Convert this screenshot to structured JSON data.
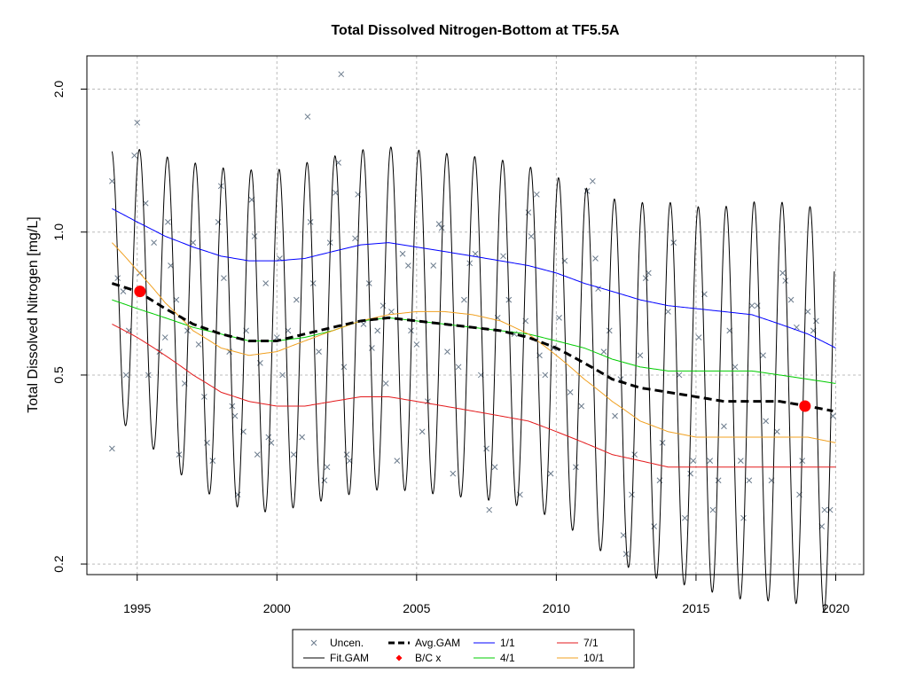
{
  "chart_data": {
    "type": "line",
    "title": "Total Dissolved Nitrogen-Bottom at TF5.5A",
    "xlabel": "",
    "ylabel": "Total Dissolved Nitrogen [mg/L]",
    "y_scale": "log",
    "xlim": [
      1993.2,
      2021.0
    ],
    "ylim": [
      0.19,
      2.35
    ],
    "x_ticks": [
      1995,
      2000,
      2005,
      2010,
      2015,
      2020
    ],
    "y_ticks": [
      0.2,
      0.5,
      1.0,
      2.0
    ],
    "y_tick_labels": [
      "0.2",
      "0.5",
      "1.0",
      "2.0"
    ],
    "grid": true,
    "legend_position": "bottom-center",
    "colors": {
      "uncen": "#6b7b8c",
      "fit_gam": "#000000",
      "avg_gam": "#000000",
      "bc": "#ff0000",
      "s_1_1": "#0000ff",
      "s_4_1": "#00cc00",
      "s_7_1": "#e31a1c",
      "s_10_1": "#f0a020",
      "grid": "#bbbbbb"
    },
    "legend": [
      {
        "key": "uncen",
        "label": "Uncen.",
        "symbol": "x"
      },
      {
        "key": "avg_gam",
        "label": "Avg.GAM",
        "symbol": "dash"
      },
      {
        "key": "s_1_1",
        "label": "1/1",
        "symbol": "line"
      },
      {
        "key": "s_7_1",
        "label": "7/1",
        "symbol": "line"
      },
      {
        "key": "fit_gam",
        "label": "Fit.GAM",
        "symbol": "line"
      },
      {
        "key": "bc",
        "label": "B/C x",
        "symbol": "diamond"
      },
      {
        "key": "s_4_1",
        "label": "4/1",
        "symbol": "line"
      },
      {
        "key": "s_10_1",
        "label": "10/1",
        "symbol": "line"
      }
    ],
    "series": [
      {
        "name": "1/1",
        "key": "s_1_1",
        "x": [
          1994.1,
          1995,
          1996,
          1997,
          1998,
          1999,
          2000,
          2001,
          2002,
          2003,
          2004,
          2005,
          2006,
          2007,
          2008,
          2009,
          2010,
          2011,
          2012,
          2013,
          2014,
          2015,
          2016,
          2017,
          2018,
          2019,
          2020
        ],
        "y": [
          1.12,
          1.05,
          0.98,
          0.93,
          0.89,
          0.87,
          0.87,
          0.88,
          0.91,
          0.94,
          0.95,
          0.93,
          0.91,
          0.89,
          0.87,
          0.85,
          0.82,
          0.78,
          0.75,
          0.72,
          0.7,
          0.69,
          0.68,
          0.67,
          0.64,
          0.61,
          0.57
        ]
      },
      {
        "name": "4/1",
        "key": "s_4_1",
        "x": [
          1994.1,
          1995,
          1996,
          1997,
          1998,
          1999,
          2000,
          2001,
          2002,
          2003,
          2004,
          2005,
          2006,
          2007,
          2008,
          2009,
          2010,
          2011,
          2012,
          2013,
          2014,
          2015,
          2016,
          2017,
          2018,
          2019,
          2020
        ],
        "y": [
          0.72,
          0.69,
          0.66,
          0.63,
          0.61,
          0.59,
          0.59,
          0.6,
          0.62,
          0.65,
          0.66,
          0.65,
          0.64,
          0.63,
          0.62,
          0.61,
          0.59,
          0.57,
          0.54,
          0.52,
          0.51,
          0.51,
          0.51,
          0.51,
          0.5,
          0.49,
          0.48
        ]
      },
      {
        "name": "7/1",
        "key": "s_7_1",
        "x": [
          1994.1,
          1995,
          1996,
          1997,
          1998,
          1999,
          2000,
          2001,
          2002,
          2003,
          2004,
          2005,
          2006,
          2007,
          2008,
          2009,
          2010,
          2011,
          2012,
          2013,
          2014,
          2015,
          2016,
          2017,
          2018,
          2019,
          2020
        ],
        "y": [
          0.64,
          0.6,
          0.55,
          0.5,
          0.46,
          0.44,
          0.43,
          0.43,
          0.44,
          0.45,
          0.45,
          0.44,
          0.43,
          0.42,
          0.41,
          0.4,
          0.38,
          0.36,
          0.34,
          0.33,
          0.32,
          0.32,
          0.32,
          0.32,
          0.32,
          0.32,
          0.32
        ]
      },
      {
        "name": "10/1",
        "key": "s_10_1",
        "x": [
          1994.1,
          1995,
          1996,
          1997,
          1998,
          1999,
          2000,
          2001,
          2002,
          2003,
          2004,
          2005,
          2006,
          2007,
          2008,
          2009,
          2010,
          2011,
          2012,
          2013,
          2014,
          2015,
          2016,
          2017,
          2018,
          2019,
          2020
        ],
        "y": [
          0.95,
          0.83,
          0.71,
          0.62,
          0.57,
          0.55,
          0.56,
          0.59,
          0.62,
          0.65,
          0.67,
          0.68,
          0.68,
          0.67,
          0.65,
          0.61,
          0.55,
          0.49,
          0.44,
          0.4,
          0.38,
          0.37,
          0.37,
          0.37,
          0.37,
          0.37,
          0.36
        ]
      },
      {
        "name": "Avg.GAM",
        "key": "avg_gam",
        "x": [
          1994.1,
          1995,
          1996,
          1997,
          1998,
          1999,
          2000,
          2001,
          2002,
          2003,
          2004,
          2005,
          2006,
          2007,
          2008,
          2009,
          2010,
          2011,
          2012,
          2013,
          2014,
          2015,
          2016,
          2017,
          2018,
          2019,
          2019.9
        ],
        "y": [
          0.78,
          0.75,
          0.69,
          0.64,
          0.61,
          0.59,
          0.59,
          0.61,
          0.63,
          0.65,
          0.66,
          0.65,
          0.64,
          0.63,
          0.62,
          0.6,
          0.57,
          0.53,
          0.49,
          0.47,
          0.46,
          0.45,
          0.44,
          0.44,
          0.44,
          0.43,
          0.42
        ]
      },
      {
        "name": "Fit.GAM",
        "key": "fit_gam",
        "amplitude": [
          0.28,
          0.3,
          0.32,
          0.34,
          0.35,
          0.36,
          0.36,
          0.36,
          0.36,
          0.36,
          0.36,
          0.36,
          0.36,
          0.36,
          0.36,
          0.36,
          0.36,
          0.37,
          0.38,
          0.39,
          0.4,
          0.4,
          0.41,
          0.42,
          0.42,
          0.42,
          0.43
        ],
        "phase_peak_fraction": 0.08
      }
    ],
    "bc_points": [
      {
        "x": 1995.1,
        "y": 0.75
      },
      {
        "x": 2018.9,
        "y": 0.43
      }
    ],
    "observations": [
      [
        1994.1,
        1.28
      ],
      [
        1994.1,
        0.35
      ],
      [
        1994.3,
        0.8
      ],
      [
        1994.5,
        0.75
      ],
      [
        1994.6,
        0.5
      ],
      [
        1994.7,
        0.62
      ],
      [
        1994.9,
        1.45
      ],
      [
        1995.0,
        1.7
      ],
      [
        1995.1,
        0.82
      ],
      [
        1995.3,
        1.15
      ],
      [
        1995.4,
        0.5
      ],
      [
        1995.6,
        0.95
      ],
      [
        1995.8,
        0.56
      ],
      [
        1996.0,
        0.6
      ],
      [
        1996.1,
        1.05
      ],
      [
        1996.2,
        0.85
      ],
      [
        1996.4,
        0.72
      ],
      [
        1996.5,
        0.34
      ],
      [
        1996.7,
        0.48
      ],
      [
        1996.8,
        0.62
      ],
      [
        1997.0,
        0.95
      ],
      [
        1997.2,
        0.58
      ],
      [
        1997.4,
        0.45
      ],
      [
        1997.5,
        0.36
      ],
      [
        1997.7,
        0.33
      ],
      [
        1997.9,
        1.05
      ],
      [
        1998.0,
        1.25
      ],
      [
        1998.1,
        0.8
      ],
      [
        1998.3,
        0.56
      ],
      [
        1998.4,
        0.43
      ],
      [
        1998.5,
        0.41
      ],
      [
        1998.6,
        0.28
      ],
      [
        1998.8,
        0.38
      ],
      [
        1998.9,
        0.62
      ],
      [
        1999.1,
        1.17
      ],
      [
        1999.2,
        0.98
      ],
      [
        1999.3,
        0.34
      ],
      [
        1999.4,
        0.53
      ],
      [
        1999.6,
        0.78
      ],
      [
        1999.7,
        0.37
      ],
      [
        1999.8,
        0.36
      ],
      [
        2000.0,
        0.6
      ],
      [
        2000.1,
        0.88
      ],
      [
        2000.2,
        0.5
      ],
      [
        2000.4,
        0.62
      ],
      [
        2000.6,
        0.34
      ],
      [
        2000.7,
        0.72
      ],
      [
        2000.9,
        0.37
      ],
      [
        2001.1,
        1.75
      ],
      [
        2001.2,
        1.05
      ],
      [
        2001.3,
        0.78
      ],
      [
        2001.5,
        0.56
      ],
      [
        2001.7,
        0.3
      ],
      [
        2001.8,
        0.32
      ],
      [
        2001.9,
        0.95
      ],
      [
        2002.1,
        1.21
      ],
      [
        2002.2,
        1.4
      ],
      [
        2002.3,
        2.15
      ],
      [
        2002.4,
        0.52
      ],
      [
        2002.5,
        0.34
      ],
      [
        2002.6,
        0.33
      ],
      [
        2002.8,
        0.97
      ],
      [
        2002.9,
        1.2
      ],
      [
        2003.1,
        0.64
      ],
      [
        2003.3,
        0.78
      ],
      [
        2003.4,
        0.57
      ],
      [
        2003.6,
        0.62
      ],
      [
        2003.8,
        0.7
      ],
      [
        2003.9,
        0.48
      ],
      [
        2004.1,
        0.68
      ],
      [
        2004.3,
        0.33
      ],
      [
        2004.5,
        0.9
      ],
      [
        2004.7,
        0.85
      ],
      [
        2004.8,
        0.62
      ],
      [
        2005.0,
        0.58
      ],
      [
        2005.2,
        0.38
      ],
      [
        2005.4,
        0.44
      ],
      [
        2005.6,
        0.85
      ],
      [
        2005.8,
        1.04
      ],
      [
        2005.9,
        1.02
      ],
      [
        2006.1,
        0.56
      ],
      [
        2006.3,
        0.31
      ],
      [
        2006.5,
        0.52
      ],
      [
        2006.7,
        0.72
      ],
      [
        2006.9,
        0.86
      ],
      [
        2007.1,
        0.9
      ],
      [
        2007.3,
        0.5
      ],
      [
        2007.5,
        0.35
      ],
      [
        2007.6,
        0.26
      ],
      [
        2007.8,
        0.32
      ],
      [
        2007.9,
        0.66
      ],
      [
        2008.1,
        0.89
      ],
      [
        2008.3,
        0.72
      ],
      [
        2008.5,
        0.61
      ],
      [
        2008.7,
        0.28
      ],
      [
        2008.9,
        0.65
      ],
      [
        2009.0,
        1.1
      ],
      [
        2009.1,
        0.98
      ],
      [
        2009.3,
        1.2
      ],
      [
        2009.4,
        0.55
      ],
      [
        2009.6,
        0.5
      ],
      [
        2009.8,
        0.31
      ],
      [
        2009.9,
        0.57
      ],
      [
        2010.1,
        0.66
      ],
      [
        2010.3,
        0.87
      ],
      [
        2010.5,
        0.46
      ],
      [
        2010.7,
        0.32
      ],
      [
        2010.9,
        0.43
      ],
      [
        2011.1,
        1.22
      ],
      [
        2011.3,
        1.28
      ],
      [
        2011.4,
        0.88
      ],
      [
        2011.5,
        0.76
      ],
      [
        2011.7,
        0.56
      ],
      [
        2011.9,
        0.62
      ],
      [
        2012.1,
        0.41
      ],
      [
        2012.3,
        0.49
      ],
      [
        2012.4,
        0.23
      ],
      [
        2012.5,
        0.21
      ],
      [
        2012.7,
        0.28
      ],
      [
        2012.8,
        0.34
      ],
      [
        2013.0,
        0.55
      ],
      [
        2013.2,
        0.8
      ],
      [
        2013.3,
        0.82
      ],
      [
        2013.5,
        0.24
      ],
      [
        2013.7,
        0.3
      ],
      [
        2013.8,
        0.36
      ],
      [
        2014.0,
        0.68
      ],
      [
        2014.2,
        0.95
      ],
      [
        2014.4,
        0.5
      ],
      [
        2014.6,
        0.25
      ],
      [
        2014.8,
        0.31
      ],
      [
        2014.9,
        0.33
      ],
      [
        2015.1,
        0.6
      ],
      [
        2015.3,
        0.74
      ],
      [
        2015.5,
        0.33
      ],
      [
        2015.6,
        0.26
      ],
      [
        2015.8,
        0.3
      ],
      [
        2016.0,
        0.39
      ],
      [
        2016.2,
        0.62
      ],
      [
        2016.4,
        0.52
      ],
      [
        2016.6,
        0.33
      ],
      [
        2016.7,
        0.25
      ],
      [
        2016.9,
        0.3
      ],
      [
        2017.0,
        0.7
      ],
      [
        2017.2,
        0.7
      ],
      [
        2017.4,
        0.55
      ],
      [
        2017.5,
        0.4
      ],
      [
        2017.7,
        0.3
      ],
      [
        2017.9,
        0.38
      ],
      [
        2018.1,
        0.82
      ],
      [
        2018.2,
        0.79
      ],
      [
        2018.4,
        0.72
      ],
      [
        2018.6,
        0.63
      ],
      [
        2018.7,
        0.28
      ],
      [
        2018.8,
        0.33
      ],
      [
        2019.0,
        0.68
      ],
      [
        2019.2,
        0.62
      ],
      [
        2019.3,
        0.65
      ],
      [
        2019.5,
        0.24
      ],
      [
        2019.6,
        0.26
      ],
      [
        2019.8,
        0.26
      ],
      [
        2019.9,
        0.41
      ]
    ]
  }
}
